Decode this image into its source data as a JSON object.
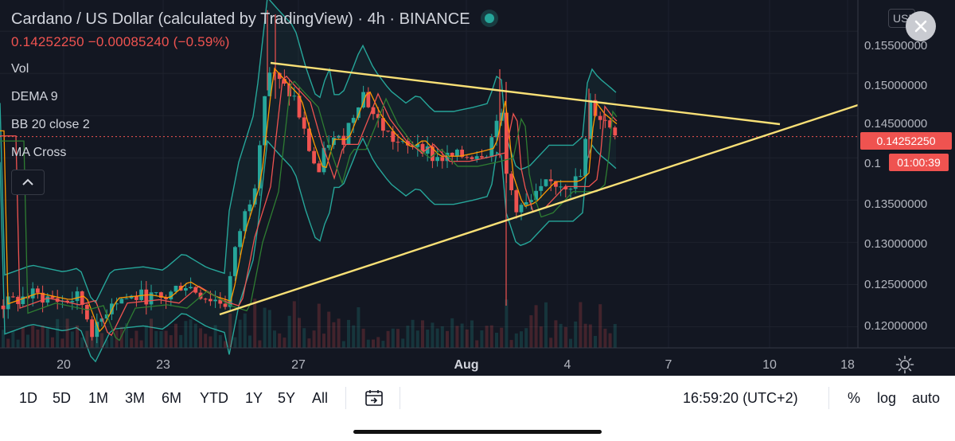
{
  "header": {
    "title": "Cardano / US Dollar (calculated by TradingView) · 4h · BINANCE",
    "price_line": "0.14252250 −0.00085240 (−0.59%)",
    "indicators": [
      "Vol",
      "DEMA 9",
      "BB 20 close 2",
      "MA Cross"
    ],
    "currency": "USD"
  },
  "price_axis": {
    "ticks": [
      "0.15500000",
      "0.15000000",
      "0.14500000",
      "0.13500000",
      "0.13000000",
      "0.12500000",
      "0.12000000"
    ],
    "partial_tick": "0.1",
    "current_price": "0.14252250",
    "countdown": "01:00:39"
  },
  "time_axis": {
    "ticks": [
      "20",
      "23",
      "27",
      "Aug",
      "4",
      "7",
      "10",
      "18"
    ]
  },
  "toolbar": {
    "ranges": [
      "1D",
      "5D",
      "1M",
      "3M",
      "6M",
      "YTD",
      "1Y",
      "5Y",
      "All"
    ],
    "clock": "16:59:20 (UTC+2)",
    "percent_label": "%",
    "log_label": "log",
    "auto_label": "auto"
  },
  "icons": [
    "chevron-up-icon",
    "close-icon",
    "gear-icon",
    "go-to-date-icon",
    "live-status-icon"
  ],
  "colors": {
    "background": "#131722",
    "up": "#26a69a",
    "down": "#ef5350",
    "trendline": "#f9e076",
    "bollinger": "#26a69a"
  },
  "chart_data": {
    "type": "candlestick",
    "symbol": "ADA/USD",
    "interval": "4h",
    "yscale_range": [
      0.1175,
      0.1587
    ],
    "current_price": 0.1425225,
    "price_change": -0.0008524,
    "price_change_pct": -0.59,
    "yticks": [
      0.155,
      0.15,
      0.145,
      0.14,
      0.135,
      0.13,
      0.125,
      0.12
    ],
    "trendlines": [
      {
        "name": "upper",
        "from": [
          26.4,
          0.1523
        ],
        "to": [
          10.4,
          0.1446
        ]
      },
      {
        "name": "lower",
        "from": [
          24.7,
          0.1211
        ],
        "to": [
          18.5,
          0.1468
        ]
      }
    ],
    "support_resistance": [
      0.1425225
    ]
  }
}
